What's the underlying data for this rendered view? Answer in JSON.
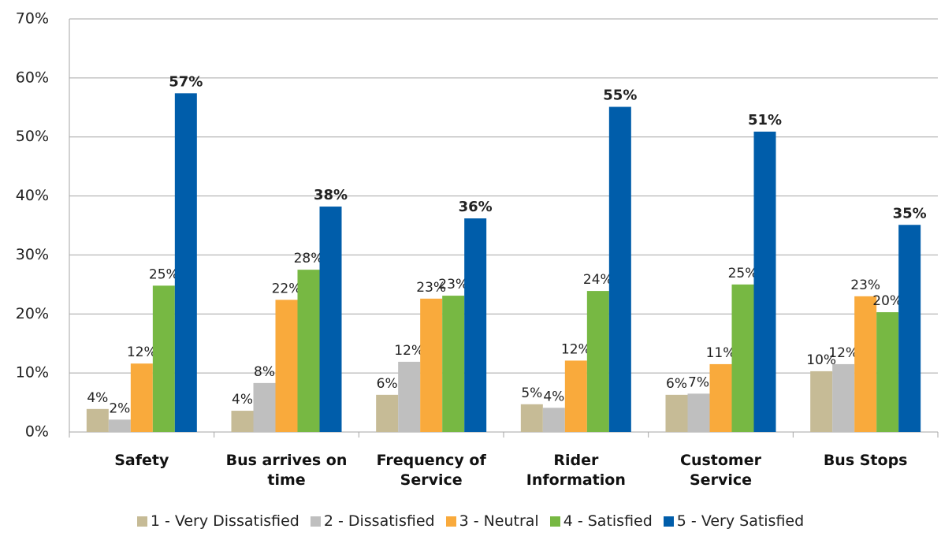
{
  "chart_data": {
    "type": "bar",
    "categories": [
      "Safety",
      "Bus arrives on time",
      "Frequency of Service",
      "Rider Information",
      "Customer Service",
      "Bus Stops"
    ],
    "series": [
      {
        "name": "1 - Very Dissatisfied",
        "color": "#c6bb96",
        "values": [
          3.9,
          3.6,
          6.3,
          4.7,
          6.3,
          10.3
        ],
        "value_labels": [
          "4%",
          "4%",
          "6%",
          "5%",
          "6%",
          "10%"
        ]
      },
      {
        "name": "2 - Dissatisfied",
        "color": "#bfbfbf",
        "values": [
          2.1,
          8.3,
          11.9,
          4.1,
          6.5,
          11.5
        ],
        "value_labels": [
          "2%",
          "8%",
          "12%",
          "4%",
          "7%",
          "12%"
        ]
      },
      {
        "name": "3 - Neutral",
        "color": "#f9aa3c",
        "values": [
          11.6,
          22.4,
          22.6,
          12.1,
          11.5,
          23.0
        ],
        "value_labels": [
          "12%",
          "22%",
          "23%",
          "12%",
          "11%",
          "23%"
        ]
      },
      {
        "name": "4 - Satisfied",
        "color": "#77b843",
        "values": [
          24.8,
          27.5,
          23.1,
          23.9,
          25.0,
          20.3
        ],
        "value_labels": [
          "25%",
          "28%",
          "23%",
          "24%",
          "25%",
          "20%"
        ]
      },
      {
        "name": "5 - Very Satisfied",
        "color": "#005daa",
        "values": [
          57.4,
          38.2,
          36.2,
          55.1,
          50.9,
          35.1
        ],
        "value_labels": [
          "57%",
          "38%",
          "36%",
          "55%",
          "51%",
          "35%"
        ]
      }
    ],
    "ylim": [
      0,
      70
    ],
    "yticks": [
      {
        "value": 0,
        "label": "0%"
      },
      {
        "value": 10,
        "label": "10%"
      },
      {
        "value": 20,
        "label": "20%"
      },
      {
        "value": 30,
        "label": "30%"
      },
      {
        "value": 40,
        "label": "40%"
      },
      {
        "value": 50,
        "label": "50%"
      },
      {
        "value": 60,
        "label": "60%"
      },
      {
        "value": 70,
        "label": "70%"
      }
    ],
    "grid": true,
    "legend": "bottom"
  }
}
